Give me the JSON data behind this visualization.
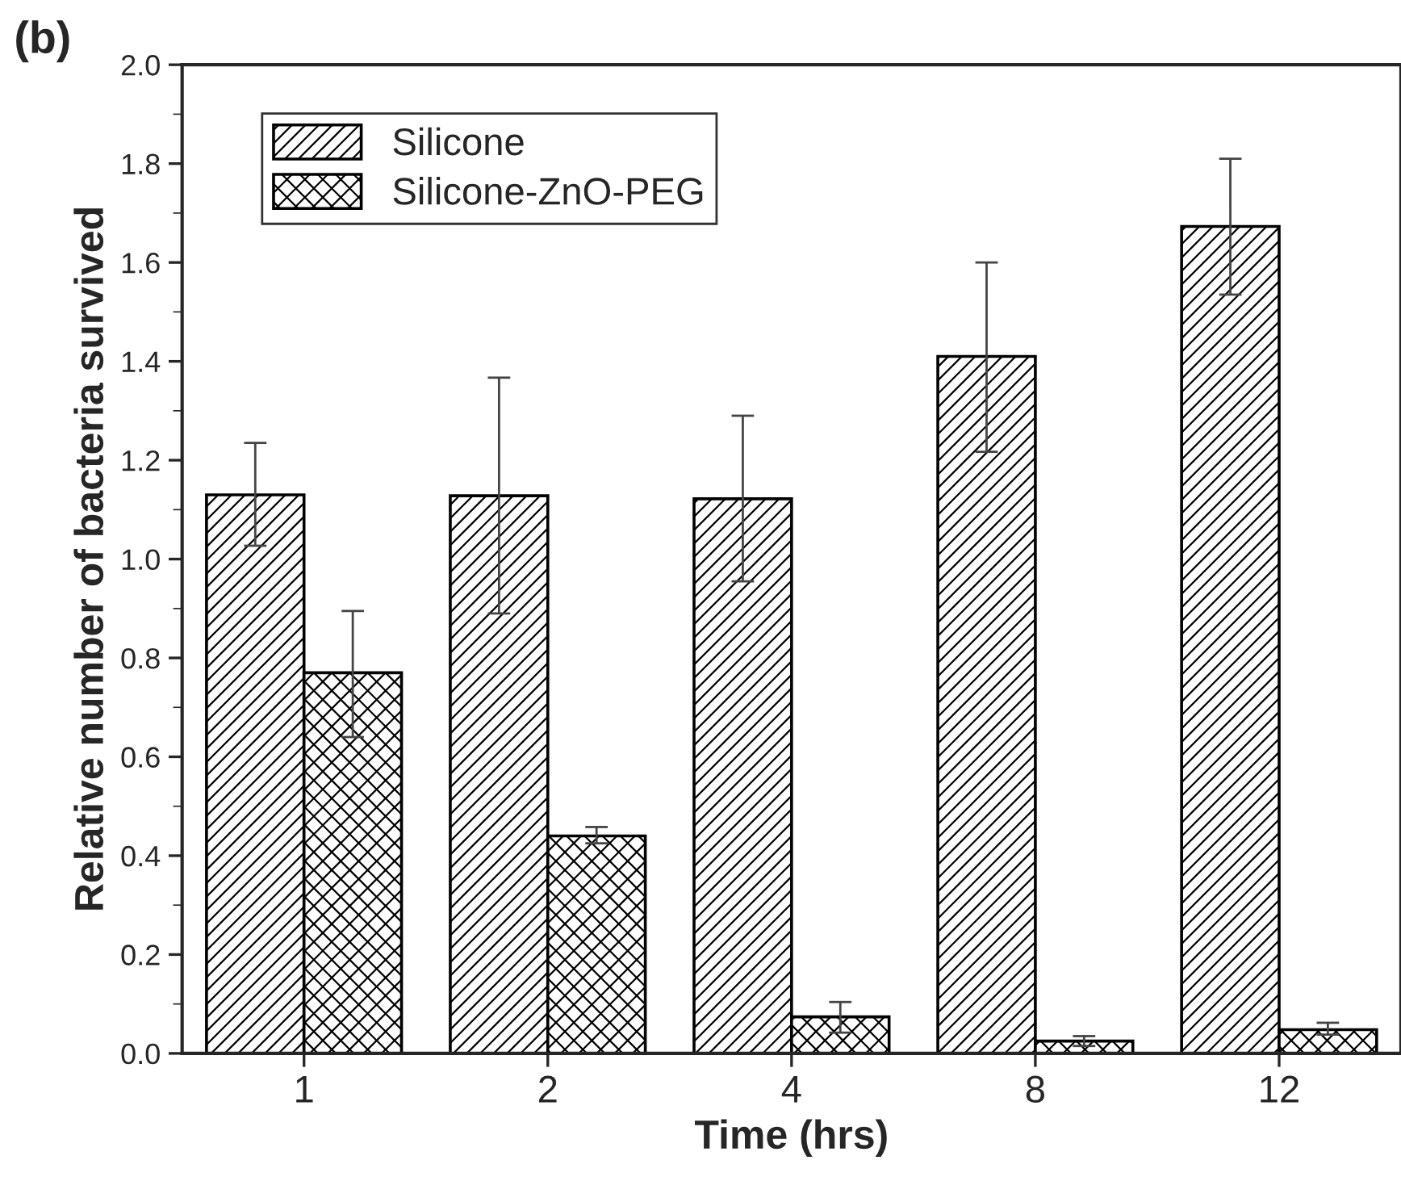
{
  "chart_data": {
    "type": "bar",
    "title": "(b)",
    "xlabel": "Time (hrs)",
    "ylabel": "Relative number of bacteria survived",
    "categories": [
      "1",
      "2",
      "4",
      "8",
      "12"
    ],
    "series": [
      {
        "name": "Silicone",
        "color": "#000000",
        "values": [
          1.13,
          1.128,
          1.122,
          1.41,
          1.673
        ],
        "errors": [
          [
            1.027,
            1.235
          ],
          [
            0.89,
            1.367
          ],
          [
            0.955,
            1.29
          ],
          [
            1.217,
            1.6
          ],
          [
            1.535,
            1.81
          ]
        ]
      },
      {
        "name": "Silicone-ZnO-PEG",
        "color": "#000000",
        "values": [
          0.77,
          0.44,
          0.074,
          0.025,
          0.048
        ],
        "errors": [
          [
            0.64,
            0.895
          ],
          [
            0.425,
            0.458
          ],
          [
            0.042,
            0.104
          ],
          [
            0.015,
            0.035
          ],
          [
            0.038,
            0.062
          ]
        ]
      }
    ],
    "ylim": [
      0,
      2.0
    ],
    "yticks": [
      {
        "value": 0,
        "label": "0.0"
      },
      0.2,
      0.4,
      0.6,
      0.8,
      {
        "value": 1,
        "label": "1.0"
      },
      1.2,
      1.4,
      1.6,
      1.8,
      {
        "value": 2,
        "label": "2.0"
      }
    ],
    "legend": "top left",
    "grid": false
  }
}
